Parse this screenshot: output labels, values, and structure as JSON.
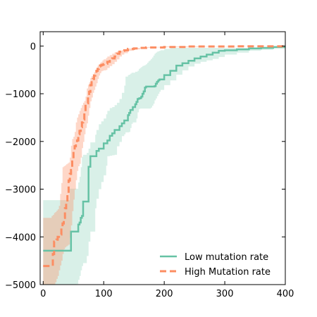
{
  "chart_data": {
    "type": "line",
    "title": "",
    "xlabel": "",
    "ylabel": "",
    "xlim": [
      -5,
      400
    ],
    "ylim": [
      -5000,
      300
    ],
    "xticks": [
      0,
      100,
      200,
      300,
      400
    ],
    "xtick_labels": [
      "0",
      "100",
      "200",
      "300",
      "400"
    ],
    "yticks": [
      0,
      -1000,
      -2000,
      -3000,
      -4000,
      -5000
    ],
    "ytick_labels": [
      "0",
      "−1000",
      "−2000",
      "−3000",
      "−4000",
      "−5000"
    ],
    "grid": false,
    "legend_position": "lower-right",
    "series": [
      {
        "name": "Low mutation rate",
        "color": "#66c2a5",
        "style": "solid",
        "x": [
          0,
          44,
          46,
          55,
          58,
          60,
          62,
          64,
          66,
          72,
          75,
          78,
          86,
          88,
          92,
          96,
          100,
          104,
          106,
          110,
          114,
          118,
          122,
          126,
          130,
          134,
          136,
          140,
          142,
          144,
          146,
          148,
          152,
          154,
          156,
          158,
          160,
          162,
          164,
          166,
          168,
          170,
          172,
          174,
          176,
          178,
          180,
          182,
          184,
          186,
          188,
          190,
          192,
          194,
          200,
          210,
          220,
          230,
          240,
          250,
          260,
          270,
          280,
          290,
          300,
          320,
          340,
          360,
          380,
          400
        ],
        "y": [
          -4290,
          -4290,
          -3890,
          -3890,
          -3740,
          -3700,
          -3600,
          -3560,
          -3260,
          -3260,
          -2530,
          -2310,
          -2310,
          -2200,
          -2150,
          -2150,
          -2040,
          -2040,
          -1980,
          -1880,
          -1830,
          -1760,
          -1760,
          -1680,
          -1620,
          -1560,
          -1560,
          -1450,
          -1400,
          -1340,
          -1340,
          -1280,
          -1220,
          -1170,
          -1110,
          -1100,
          -1090,
          -1060,
          -1000,
          -950,
          -870,
          -850,
          -850,
          -850,
          -850,
          -850,
          -850,
          -850,
          -840,
          -790,
          -750,
          -720,
          -700,
          -700,
          -610,
          -520,
          -410,
          -360,
          -310,
          -260,
          -220,
          -180,
          -140,
          -100,
          -90,
          -70,
          -50,
          -40,
          -20,
          -20
        ],
        "band_upper": [
          -3230,
          -2990,
          -2990,
          -2990,
          -2860,
          -2740,
          -2540,
          -2320,
          -2280,
          -2240,
          -2150,
          -2020,
          -1860,
          -1760,
          -1640,
          -1580,
          -1520,
          -1430,
          -1360,
          -1300,
          -1280,
          -1240,
          -1190,
          -1110,
          -980,
          -830,
          -640,
          -610,
          -600,
          -580,
          -560,
          -560,
          -540,
          -540,
          -520,
          -480,
          -460,
          -440,
          -420,
          -410,
          -400,
          -380,
          -350,
          -320,
          -300,
          -270,
          -240,
          -200,
          -160,
          -140,
          -120,
          -110,
          -100,
          -90,
          -60,
          -40,
          -40,
          -40,
          -40,
          -40,
          -40,
          -40,
          -40,
          -40,
          -40,
          -40,
          -30,
          -20,
          -10,
          0
        ],
        "band_lower": [
          -5000,
          -5000,
          -5000,
          -4990,
          -4900,
          -4820,
          -4700,
          -4610,
          -4550,
          -4400,
          -4100,
          -3890,
          -3400,
          -3200,
          -3000,
          -2850,
          -2710,
          -2510,
          -2310,
          -2300,
          -2290,
          -2280,
          -2100,
          -2010,
          -1890,
          -1850,
          -1810,
          -1810,
          -1800,
          -1720,
          -1630,
          -1600,
          -1600,
          -1520,
          -1390,
          -1320,
          -1310,
          -1310,
          -1310,
          -1310,
          -1310,
          -1310,
          -1310,
          -1310,
          -1310,
          -1290,
          -1250,
          -1210,
          -1140,
          -1100,
          -1050,
          -1000,
          -960,
          -920,
          -820,
          -720,
          -600,
          -510,
          -430,
          -370,
          -330,
          -300,
          -270,
          -230,
          -180,
          -140,
          -100,
          -80,
          -60,
          -40
        ]
      },
      {
        "name": "High Mutation rate",
        "color": "#fc8d62",
        "style": "dashed",
        "x": [
          0,
          14,
          16,
          18,
          20,
          22,
          24,
          26,
          28,
          30,
          32,
          34,
          36,
          38,
          40,
          42,
          44,
          46,
          48,
          50,
          52,
          54,
          56,
          58,
          60,
          62,
          64,
          66,
          68,
          70,
          72,
          74,
          76,
          78,
          80,
          82,
          84,
          86,
          88,
          90,
          92,
          94,
          96,
          98,
          100,
          104,
          106,
          110,
          114,
          118,
          122,
          126,
          130,
          134,
          140,
          150,
          160,
          170,
          180,
          200,
          220,
          240,
          260,
          280,
          300,
          320,
          340,
          360,
          380,
          400
        ],
        "y": [
          -4610,
          -4610,
          -4360,
          -4100,
          -4100,
          -4060,
          -4000,
          -3950,
          -3950,
          -3800,
          -3720,
          -3600,
          -3400,
          -3300,
          -3100,
          -2820,
          -2680,
          -2600,
          -2420,
          -2200,
          -2100,
          -2020,
          -1980,
          -1850,
          -1780,
          -1700,
          -1600,
          -1540,
          -1400,
          -1220,
          -1200,
          -1100,
          -960,
          -820,
          -760,
          -690,
          -620,
          -580,
          -520,
          -480,
          -430,
          -410,
          -400,
          -390,
          -380,
          -370,
          -330,
          -280,
          -260,
          -220,
          -160,
          -120,
          -100,
          -90,
          -60,
          -50,
          -40,
          -30,
          -30,
          -20,
          -20,
          -10,
          -10,
          -10,
          -10,
          -5,
          -5,
          -5,
          -5,
          -5
        ],
        "band_upper": [
          -3600,
          -3560,
          -3540,
          -3500,
          -3480,
          -3450,
          -3420,
          -3350,
          -3100,
          -2870,
          -2540,
          -2520,
          -2500,
          -2480,
          -2460,
          -2440,
          -2340,
          -2090,
          -1950,
          -1900,
          -1800,
          -1600,
          -1500,
          -1430,
          -1360,
          -1300,
          -1240,
          -1190,
          -1150,
          -1060,
          -890,
          -810,
          -760,
          -670,
          -630,
          -590,
          -550,
          -520,
          -470,
          -410,
          -380,
          -350,
          -330,
          -300,
          -280,
          -250,
          -220,
          -190,
          -160,
          -130,
          -110,
          -100,
          -90,
          -80,
          -50,
          -40,
          -30,
          -20,
          -20,
          -10,
          -10,
          -5,
          -5,
          -5,
          -5,
          -5,
          -5,
          -5,
          -5,
          -5
        ],
        "band_lower": [
          -5000,
          -5000,
          -5000,
          -5000,
          -4950,
          -4880,
          -4820,
          -4700,
          -4600,
          -4500,
          -4360,
          -4260,
          -4220,
          -4200,
          -4180,
          -4160,
          -4020,
          -3760,
          -3460,
          -3220,
          -3010,
          -2810,
          -2620,
          -2520,
          -2470,
          -2340,
          -2140,
          -2010,
          -1850,
          -1720,
          -1620,
          -1460,
          -1300,
          -1160,
          -1080,
          -980,
          -920,
          -850,
          -780,
          -690,
          -620,
          -570,
          -530,
          -520,
          -510,
          -500,
          -460,
          -420,
          -380,
          -330,
          -280,
          -220,
          -180,
          -150,
          -100,
          -70,
          -50,
          -40,
          -30,
          -25,
          -25,
          -20,
          -15,
          -15,
          -15,
          -10,
          -10,
          -10,
          -10,
          -10
        ]
      }
    ]
  }
}
